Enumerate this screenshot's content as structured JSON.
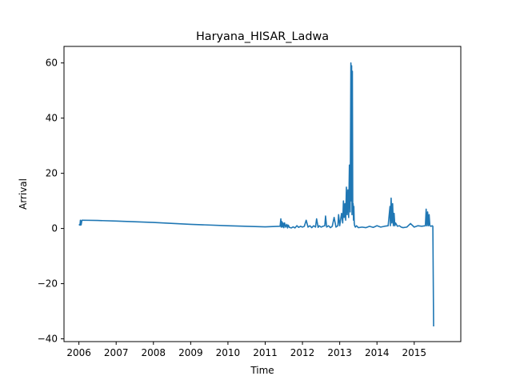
{
  "chart_data": {
    "type": "line",
    "title": "Haryana_HISAR_Ladwa",
    "xlabel": "Time",
    "ylabel": "Arrival",
    "xlim": [
      2005.6,
      2016.25
    ],
    "ylim": [
      -41,
      66
    ],
    "xticks": [
      2006,
      2007,
      2008,
      2009,
      2010,
      2011,
      2012,
      2013,
      2014,
      2015
    ],
    "xtick_labels": [
      "2006",
      "2007",
      "2008",
      "2009",
      "2010",
      "2011",
      "2012",
      "2013",
      "2014",
      "2015"
    ],
    "yticks": [
      -40,
      -20,
      0,
      20,
      40,
      60
    ],
    "ytick_labels": [
      "−40",
      "−20",
      "0",
      "20",
      "40",
      "60"
    ],
    "grid": false,
    "series": [
      {
        "color": "#1f77b4",
        "x": [
          2006.0,
          2006.03,
          2006.04,
          2006.06,
          2006.08,
          2006.5,
          2007.0,
          2008.0,
          2009.0,
          2010.0,
          2011.0,
          2011.4,
          2011.42,
          2011.43,
          2011.45,
          2011.46,
          2011.48,
          2011.5,
          2011.52,
          2011.55,
          2011.58,
          2011.6,
          2011.62,
          2011.65,
          2011.7,
          2011.75,
          2011.8,
          2011.85,
          2011.9,
          2011.95,
          2012.0,
          2012.05,
          2012.1,
          2012.15,
          2012.2,
          2012.25,
          2012.3,
          2012.35,
          2012.38,
          2012.42,
          2012.45,
          2012.5,
          2012.55,
          2012.6,
          2012.62,
          2012.65,
          2012.7,
          2012.75,
          2012.8,
          2012.85,
          2012.9,
          2012.95,
          2012.97,
          2013.0,
          2013.05,
          2013.08,
          2013.1,
          2013.12,
          2013.14,
          2013.16,
          2013.18,
          2013.2,
          2013.22,
          2013.24,
          2013.26,
          2013.28,
          2013.3,
          2013.31,
          2013.32,
          2013.33,
          2013.34,
          2013.35,
          2013.36,
          2013.37,
          2013.38,
          2013.39,
          2013.4,
          2013.42,
          2013.45,
          2013.5,
          2013.6,
          2013.7,
          2013.8,
          2013.9,
          2014.0,
          2014.1,
          2014.2,
          2014.3,
          2014.35,
          2014.36,
          2014.38,
          2014.4,
          2014.42,
          2014.44,
          2014.46,
          2014.48,
          2014.5,
          2014.55,
          2014.6,
          2014.65,
          2014.7,
          2014.8,
          2014.9,
          2015.0,
          2015.1,
          2015.2,
          2015.3,
          2015.32,
          2015.34,
          2015.36,
          2015.38,
          2015.4,
          2015.42,
          2015.45,
          2015.48,
          2015.5,
          2015.52
        ],
        "y": [
          1.5,
          1.2,
          3.0,
          1.3,
          3.0,
          2.9,
          2.7,
          2.2,
          1.5,
          1.0,
          0.6,
          0.8,
          3.5,
          0.5,
          2.5,
          0.5,
          2.0,
          0.3,
          2.0,
          0.5,
          1.5,
          0.2,
          1.2,
          0.4,
          0.2,
          0.6,
          0.2,
          1.0,
          0.4,
          0.8,
          0.5,
          0.8,
          3.0,
          0.5,
          1.0,
          0.3,
          1.0,
          0.5,
          3.5,
          0.4,
          1.0,
          0.5,
          0.8,
          1.0,
          4.5,
          0.5,
          1.0,
          0.3,
          0.8,
          4.0,
          0.5,
          1.0,
          5.0,
          1.0,
          5.5,
          2.0,
          10.0,
          4.0,
          9.0,
          3.0,
          15.0,
          5.0,
          14.0,
          4.0,
          23.0,
          6.0,
          60.0,
          10.0,
          59.0,
          5.0,
          57.0,
          8.0,
          9.0,
          3.0,
          8.0,
          2.0,
          1.0,
          0.5,
          1.0,
          0.3,
          0.5,
          0.3,
          0.8,
          0.4,
          1.0,
          0.5,
          0.8,
          1.0,
          8.0,
          1.0,
          11.0,
          2.0,
          9.0,
          1.0,
          5.5,
          1.0,
          2.0,
          0.8,
          1.0,
          0.5,
          0.3,
          0.5,
          1.8,
          0.5,
          1.0,
          0.8,
          1.0,
          7.0,
          1.0,
          6.0,
          1.0,
          5.0,
          1.0,
          0.8,
          1.0,
          0.8,
          -35.5
        ]
      }
    ]
  }
}
